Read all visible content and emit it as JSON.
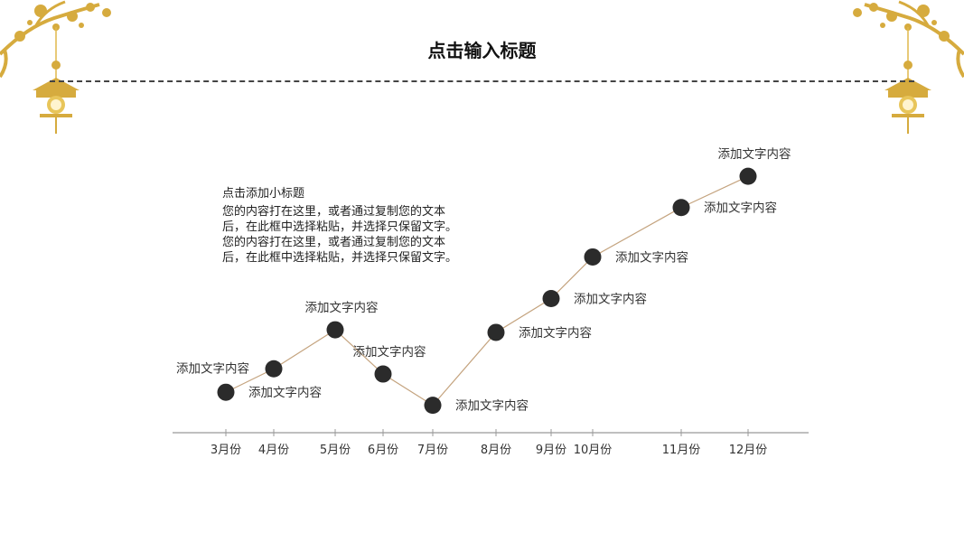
{
  "page": {
    "title": "点击输入标题",
    "subtitle": "点击添加小标题",
    "paragraphs": [
      "您的内容打在这里，或者通过复制您的文本\n后，在此框中选择粘贴，并选择只保留文字。",
      "您的内容打在这里，或者通过复制您的文本\n后，在此框中选择粘贴，并选择只保留文字。"
    ]
  },
  "colors": {
    "line": "#c4a37e",
    "marker": "#2b2b2b",
    "axis": "#999999",
    "gold": "#d6ab3e"
  },
  "decoration": {
    "left": "gold-plum-blossom-lantern-icon",
    "right": "gold-plum-blossom-lantern-icon"
  },
  "chart_data": {
    "type": "line",
    "categories": [
      "3月份",
      "4月份",
      "5月份",
      "6月份",
      "7月份",
      "8月份",
      "9月份",
      "10月份",
      "11月份",
      "12月份"
    ],
    "values": [
      1.0,
      1.9,
      3.4,
      1.7,
      0.5,
      3.3,
      4.6,
      6.2,
      8.1,
      9.3
    ],
    "labels": [
      "添加文字内容",
      "添加文字内容",
      "添加文字内容",
      "添加文字内容",
      "添加文字内容",
      "添加文字内容",
      "添加文字内容",
      "添加文字内容",
      "添加文字内容",
      "添加文字内容"
    ],
    "label_positions": [
      "right",
      "left",
      "above",
      "above",
      "right",
      "right",
      "right",
      "right",
      "right",
      "above"
    ],
    "ylim": [
      0,
      10
    ],
    "grid": false
  }
}
